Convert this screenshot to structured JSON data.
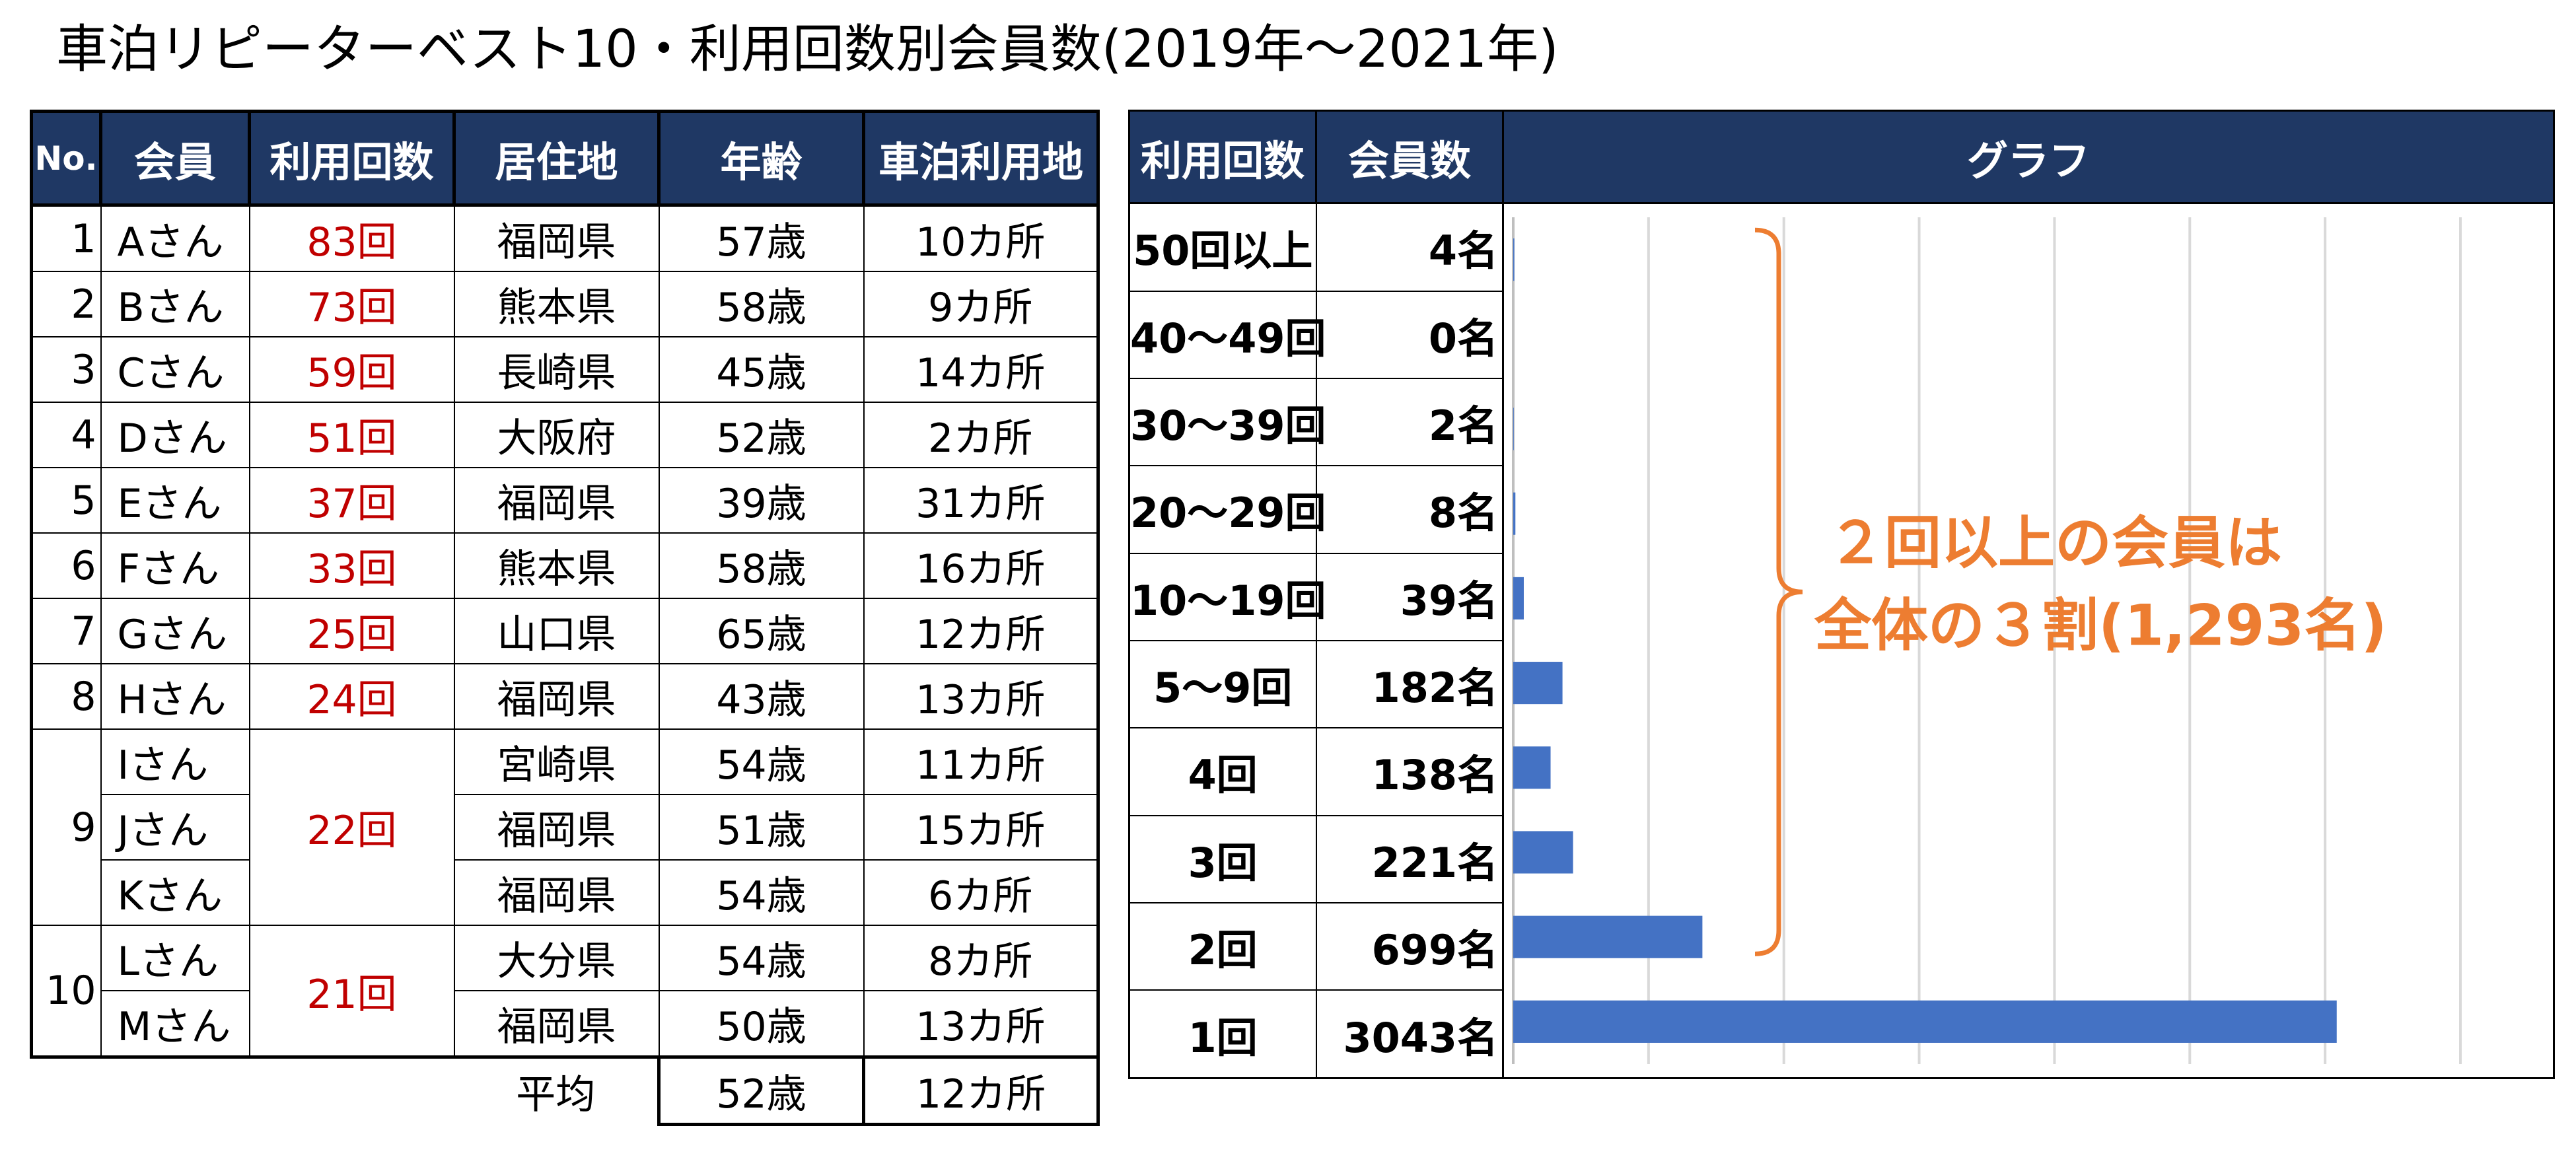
{
  "title": "車泊リピーターベスト10・利用回数別会員数(2019年〜2021年)",
  "left_table": {
    "headers": [
      "No.",
      "会員",
      "利用回数",
      "居住地",
      "年齢",
      "車泊利用地"
    ],
    "rows": [
      {
        "no": "1",
        "member": "Aさん",
        "count": "83回",
        "residence": "福岡県",
        "age": "57歳",
        "places": "10カ所"
      },
      {
        "no": "2",
        "member": "Bさん",
        "count": "73回",
        "residence": "熊本県",
        "age": "58歳",
        "places": "9カ所"
      },
      {
        "no": "3",
        "member": "Cさん",
        "count": "59回",
        "residence": "長崎県",
        "age": "45歳",
        "places": "14カ所"
      },
      {
        "no": "4",
        "member": "Dさん",
        "count": "51回",
        "residence": "大阪府",
        "age": "52歳",
        "places": "2カ所"
      },
      {
        "no": "5",
        "member": "Eさん",
        "count": "37回",
        "residence": "福岡県",
        "age": "39歳",
        "places": "31カ所"
      },
      {
        "no": "6",
        "member": "Fさん",
        "count": "33回",
        "residence": "熊本県",
        "age": "58歳",
        "places": "16カ所"
      },
      {
        "no": "7",
        "member": "Gさん",
        "count": "25回",
        "residence": "山口県",
        "age": "65歳",
        "places": "12カ所"
      },
      {
        "no": "8",
        "member": "Hさん",
        "count": "24回",
        "residence": "福岡県",
        "age": "43歳",
        "places": "13カ所"
      },
      {
        "no": "9",
        "member": "Iさん",
        "count": "22回",
        "residence": "宮崎県",
        "age": "54歳",
        "places": "11カ所"
      },
      {
        "no": "",
        "member": "Jさん",
        "count": "",
        "residence": "福岡県",
        "age": "51歳",
        "places": "15カ所"
      },
      {
        "no": "",
        "member": "Kさん",
        "count": "",
        "residence": "福岡県",
        "age": "54歳",
        "places": "6カ所"
      },
      {
        "no": "10",
        "member": "Lさん",
        "count": "21回",
        "residence": "大分県",
        "age": "54歳",
        "places": "8カ所"
      },
      {
        "no": "",
        "member": "Mさん",
        "count": "",
        "residence": "福岡県",
        "age": "50歳",
        "places": "13カ所"
      }
    ],
    "average": {
      "label": "平均",
      "age": "52歳",
      "places": "12カ所"
    }
  },
  "right_table": {
    "headers": [
      "利用回数",
      "会員数",
      "グラフ"
    ],
    "rows": [
      {
        "range": "50回以上",
        "members": "4名"
      },
      {
        "range": "40〜49回",
        "members": "0名"
      },
      {
        "range": "30〜39回",
        "members": "2名"
      },
      {
        "range": "20〜29回",
        "members": "8名"
      },
      {
        "range": "10〜19回",
        "members": "39名"
      },
      {
        "range": "5〜9回",
        "members": "182名"
      },
      {
        "range": "4回",
        "members": "138名"
      },
      {
        "range": "3回",
        "members": "221名"
      },
      {
        "range": "2回",
        "members": "699名"
      },
      {
        "range": "1回",
        "members": "3043名"
      }
    ]
  },
  "annotation": {
    "line1": "２回以上の会員は",
    "line2": "全体の３割(1,293名)"
  },
  "chart_data": {
    "type": "bar",
    "orientation": "horizontal",
    "categories": [
      "50回以上",
      "40〜49回",
      "30〜39回",
      "20〜29回",
      "10〜19回",
      "5〜9回",
      "4回",
      "3回",
      "2回",
      "1回"
    ],
    "values": [
      4,
      0,
      2,
      8,
      39,
      182,
      138,
      221,
      699,
      3043
    ],
    "title": "グラフ",
    "xlim": [
      0,
      3500
    ],
    "grid": true,
    "bar_color": "#4472c4",
    "annotation_color": "#ed7d31",
    "header_color": "#1f3864",
    "count_text_color": "#c00000"
  }
}
